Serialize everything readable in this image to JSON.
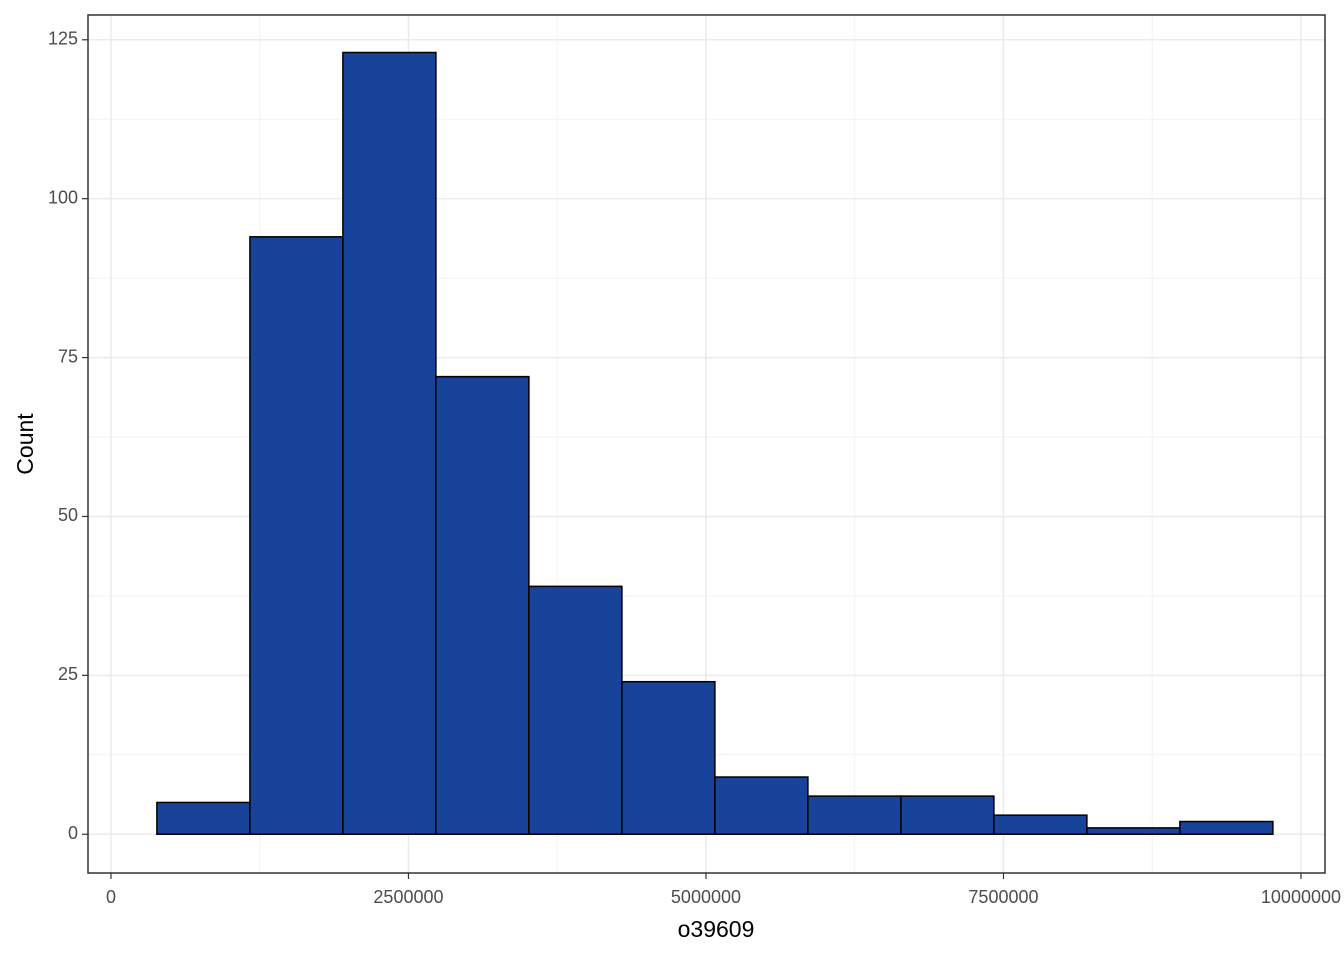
{
  "chart_data": {
    "type": "histogram",
    "x_label": "o39609",
    "y_label": "Count",
    "bins": [
      386000,
      1167500,
      1949000,
      2730500,
      3512000,
      4293500,
      5075000,
      5856500,
      6638000,
      7419500,
      8201000,
      8982500,
      9764000
    ],
    "values": [
      5,
      94,
      123,
      72,
      39,
      24,
      9,
      6,
      6,
      3,
      1,
      2
    ],
    "color": "#18439a",
    "edge_color": "#000000",
    "xlim": [
      -193000,
      10202000
    ],
    "ylim": [
      -6.1,
      128.9
    ],
    "xticks": [
      0,
      2500000,
      5000000,
      7500000,
      10000000
    ],
    "yticks": [
      0,
      25,
      50,
      75,
      100,
      125
    ],
    "grid": true,
    "minor_grid": true
  }
}
